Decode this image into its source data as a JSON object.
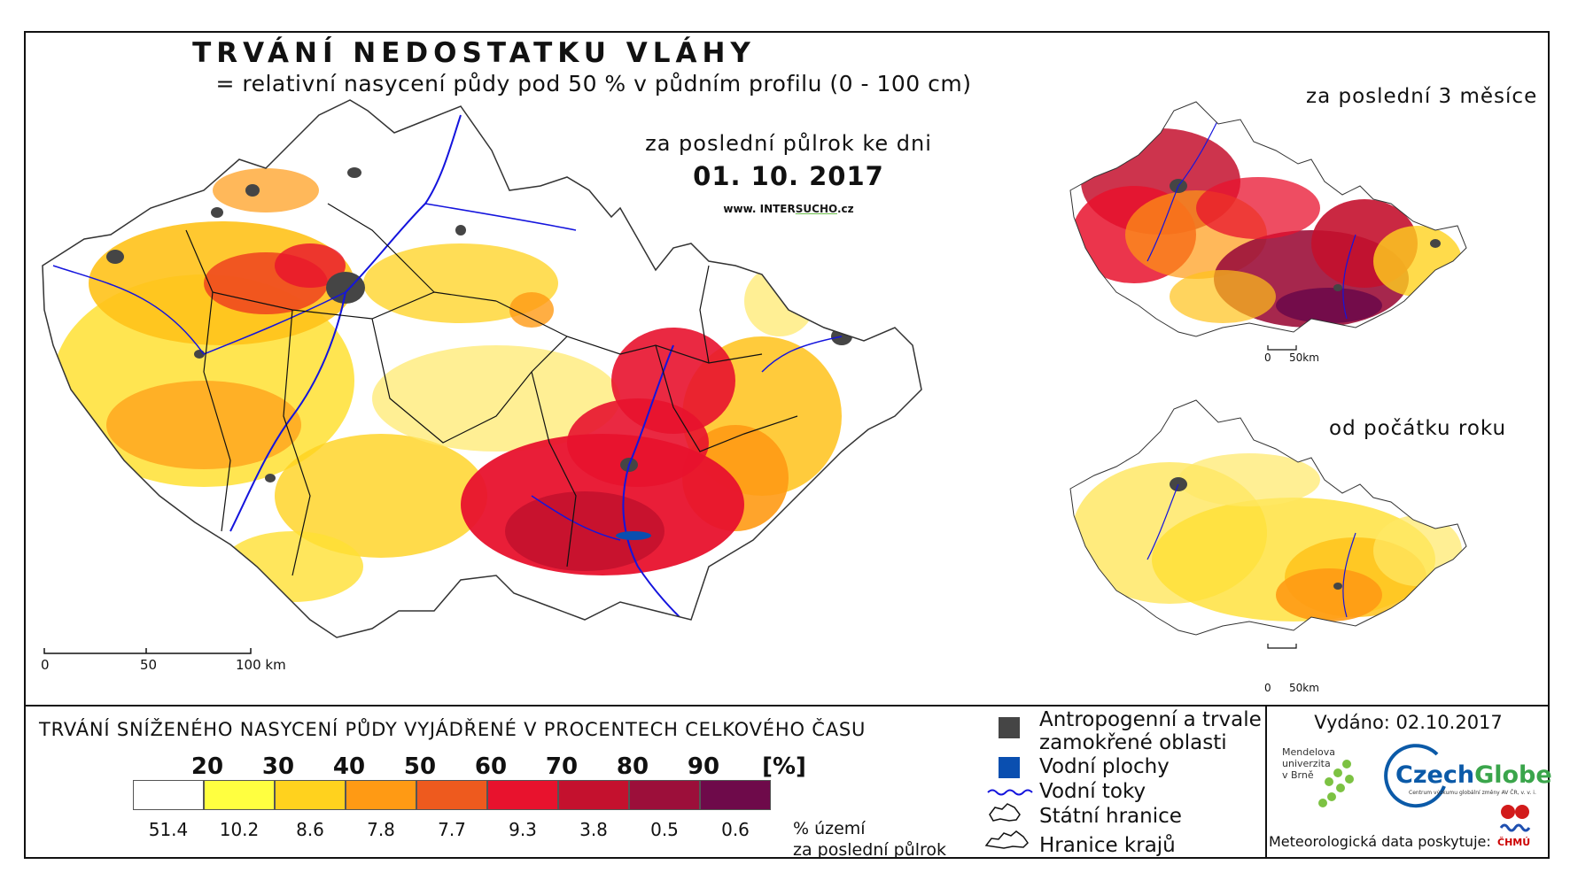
{
  "map": {
    "title": "TRVÁNÍ NEDOSTATKU VLÁHY",
    "subtitle": "= relativní nasycení půdy pod 50 % v půdním profilu (0 - 100 cm)",
    "period": "za poslední půlrok ke dni",
    "date": "01. 10. 2017",
    "website_prefix": "www. INTER",
    "website_brand": "SUCHO",
    "website_suffix": ".cz",
    "scale": {
      "zero": "0",
      "mid": "50",
      "end": "100 km"
    }
  },
  "insets": [
    {
      "title": "za poslední 3 měsíce",
      "scale_zero": "0",
      "scale_end": "50km"
    },
    {
      "title": "od počátku roku",
      "scale_zero": "0",
      "scale_end": "50km"
    }
  ],
  "legend": {
    "title": "TRVÁNÍ SNÍŽENÉHO NASYCENÍ PŮDY VYJÁDŘENÉ V PROCENTECH CELKOVÉHO ČASU",
    "thresholds": [
      "20",
      "30",
      "40",
      "50",
      "60",
      "70",
      "80",
      "90",
      "[%]"
    ],
    "classes": [
      {
        "color": "#ffffff",
        "pct": "51.4"
      },
      {
        "color": "#ffff40",
        "pct": "10.2"
      },
      {
        "color": "#ffd21e",
        "pct": "8.6"
      },
      {
        "color": "#ff9a14",
        "pct": "7.8"
      },
      {
        "color": "#ee5a1e",
        "pct": "7.7"
      },
      {
        "color": "#e8122d",
        "pct": "9.3"
      },
      {
        "color": "#c4112e",
        "pct": "3.8"
      },
      {
        "color": "#9c0f3a",
        "pct": "0.5"
      },
      {
        "color": "#6e0a4a",
        "pct": "0.6"
      }
    ],
    "unit_line1": "% území",
    "unit_line2": "za poslední půlrok"
  },
  "key": {
    "urban_line1": "Antropogenní a trvale",
    "urban_line2": "zamokřené oblasti",
    "water_bodies": "Vodní plochy",
    "rivers": "Vodní toky",
    "state_border": "Státní hranice",
    "regional_border": "Hranice krajů",
    "colors": {
      "urban": "#454545",
      "water": "#0a4fb0",
      "river": "#1414dd"
    }
  },
  "footer": {
    "issued": "Vydáno: 02.10.2017",
    "mendel_line1": "Mendelova",
    "mendel_line2": "univerzita",
    "mendel_line3": "v Brně",
    "czechglobe_a": "Czech",
    "czechglobe_b": "Globe",
    "czechglobe_sub": "Centrum výzkumu globální změny AV ČR, v. v. i.",
    "meteo": "Meteorologická data poskytuje:",
    "chmu": "ČHMÚ"
  }
}
